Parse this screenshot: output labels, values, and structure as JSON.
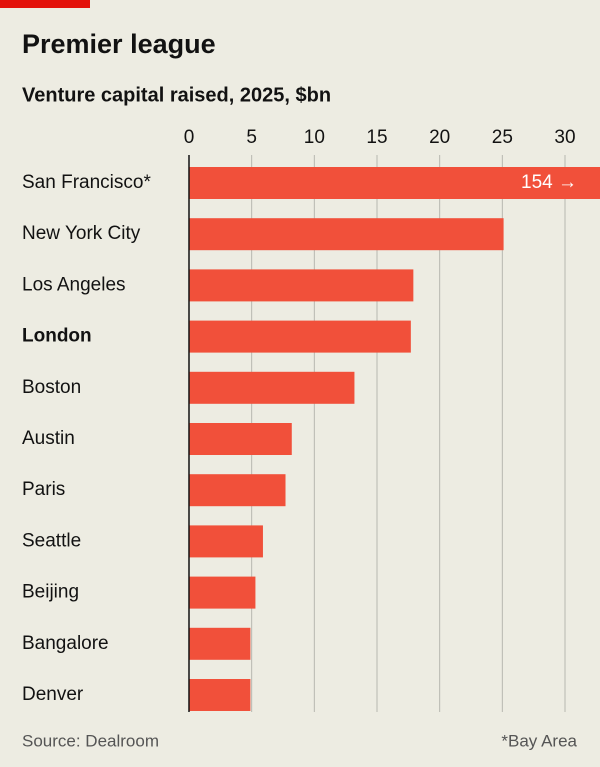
{
  "chart_data": {
    "type": "bar",
    "orientation": "horizontal",
    "title": "Premier league",
    "subtitle": "Venture capital raised, 2025, $bn",
    "categories": [
      "San Francisco*",
      "New York City",
      "Los Angeles",
      "London",
      "Boston",
      "Austin",
      "Paris",
      "Seattle",
      "Beijing",
      "Bangalore",
      "Denver"
    ],
    "values": [
      154,
      25.1,
      17.9,
      17.7,
      13.2,
      8.2,
      7.7,
      5.9,
      5.3,
      4.9,
      4.9
    ],
    "value_labels": [
      "154 →",
      null,
      null,
      null,
      null,
      null,
      null,
      null,
      null,
      null,
      null
    ],
    "highlight": "London",
    "color": "#f1503a",
    "xlim": [
      0,
      30
    ],
    "xticks": [
      0,
      5,
      10,
      15,
      20,
      25,
      30
    ],
    "grid": true,
    "source": "Source: Dealroom",
    "note": "*Bay Area"
  }
}
